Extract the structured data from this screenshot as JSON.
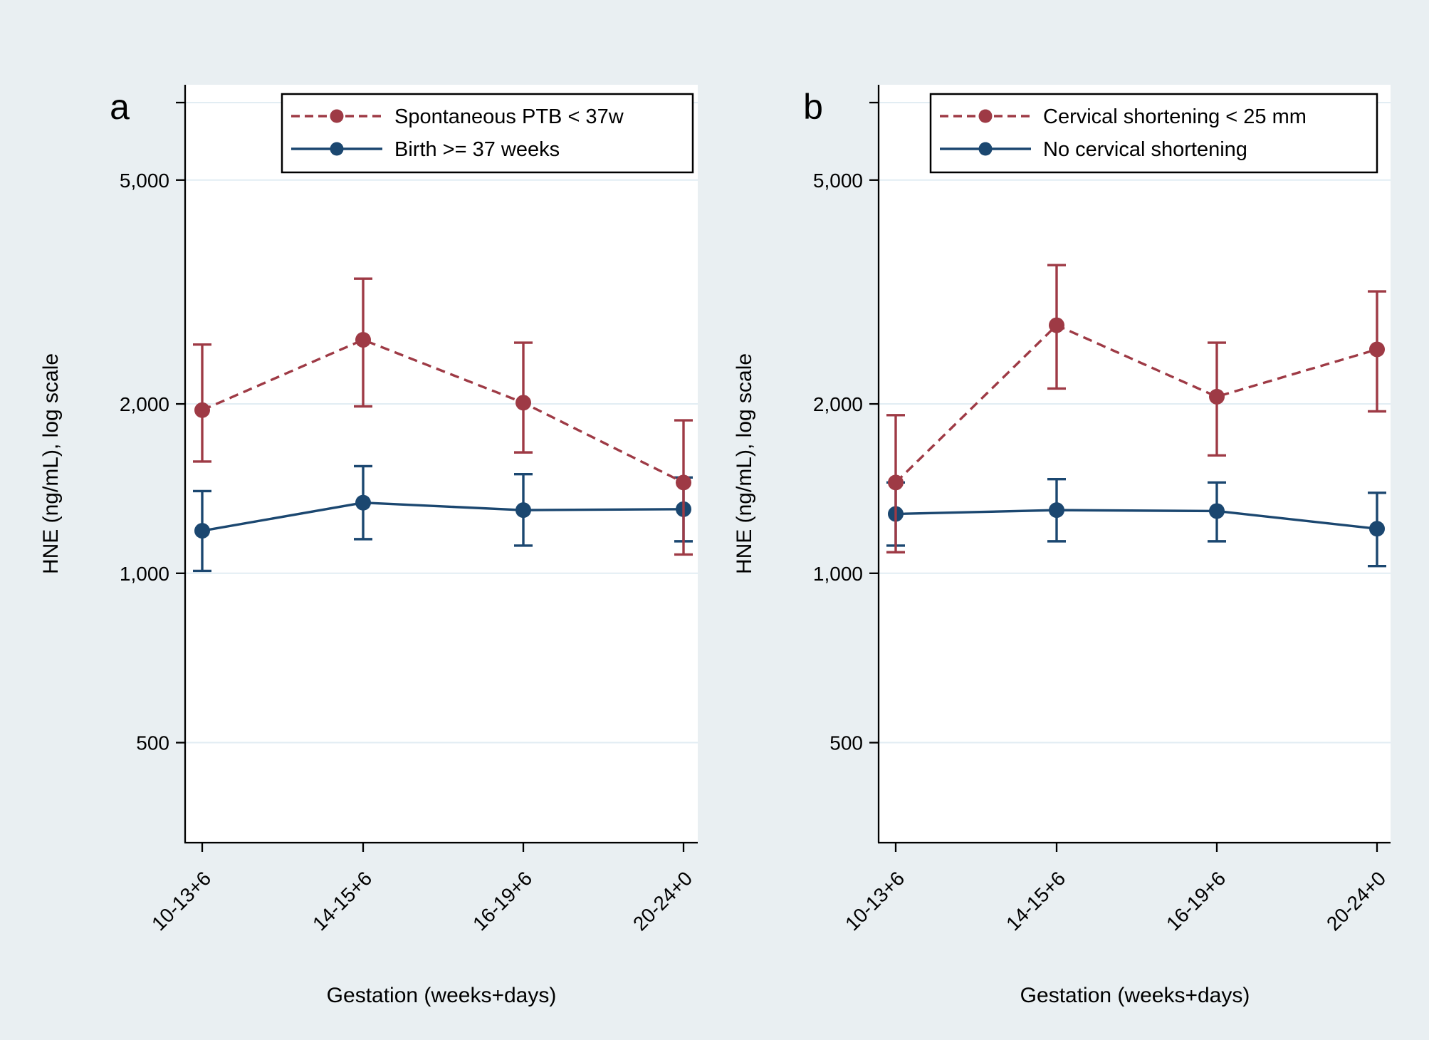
{
  "figure": {
    "background_color": "#e9eff2",
    "plot_background_color": "#ffffff",
    "gridline_color": "#e2edf3",
    "axis_color": "#000000",
    "legend_border_color": "#000000",
    "legend_fill_color": "#ffffff"
  },
  "chart_data": [
    {
      "type": "line",
      "panel_label": "a",
      "xlabel": "Gestation (weeks+days)",
      "ylabel": "HNE (ng/mL), log scale",
      "categories": [
        "10-13+6",
        "14-15+6",
        "16-19+6",
        "20-24+0"
      ],
      "y_scale": "log",
      "ylim": [
        332,
        7385
      ],
      "y_ticks": [
        500,
        1000,
        2000,
        5000
      ],
      "y_tick_labels": [
        "500",
        "1,000",
        "2,000",
        "5,000"
      ],
      "grid": true,
      "legend_position": "top-inside",
      "series": [
        {
          "name": "Spontaneous PTB < 37w",
          "color": "#9e3a45",
          "line_style": "dashed",
          "marker": "circle",
          "values": [
            1950,
            2600,
            2010,
            1450
          ],
          "ci_low": [
            1580,
            1980,
            1640,
            1080
          ],
          "ci_high": [
            2550,
            3340,
            2570,
            1870
          ]
        },
        {
          "name": "Birth >= 37 weeks",
          "color": "#1b4770",
          "line_style": "solid",
          "marker": "circle",
          "values": [
            1190,
            1335,
            1295,
            1300
          ],
          "ci_low": [
            1010,
            1150,
            1120,
            1140
          ],
          "ci_high": [
            1400,
            1550,
            1500,
            1480
          ]
        }
      ]
    },
    {
      "type": "line",
      "panel_label": "b",
      "xlabel": "Gestation (weeks+days)",
      "ylabel": "HNE (ng/mL), log scale",
      "categories": [
        "10-13+6",
        "14-15+6",
        "16-19+6",
        "20-24+0"
      ],
      "y_scale": "log",
      "ylim": [
        332,
        7385
      ],
      "y_ticks": [
        500,
        1000,
        2000,
        5000
      ],
      "y_tick_labels": [
        "500",
        "1,000",
        "2,000",
        "5,000"
      ],
      "grid": true,
      "legend_position": "top-inside",
      "series": [
        {
          "name": "Cervical shortening < 25 mm",
          "color": "#9e3a45",
          "line_style": "dashed",
          "marker": "circle",
          "values": [
            1450,
            2760,
            2060,
            2500
          ],
          "ci_low": [
            1090,
            2130,
            1620,
            1940
          ],
          "ci_high": [
            1910,
            3530,
            2570,
            3170
          ]
        },
        {
          "name": "No cervical shortening",
          "color": "#1b4770",
          "line_style": "solid",
          "marker": "circle",
          "values": [
            1275,
            1295,
            1290,
            1200
          ],
          "ci_low": [
            1120,
            1140,
            1140,
            1030
          ],
          "ci_high": [
            1450,
            1470,
            1450,
            1390
          ]
        }
      ]
    }
  ]
}
